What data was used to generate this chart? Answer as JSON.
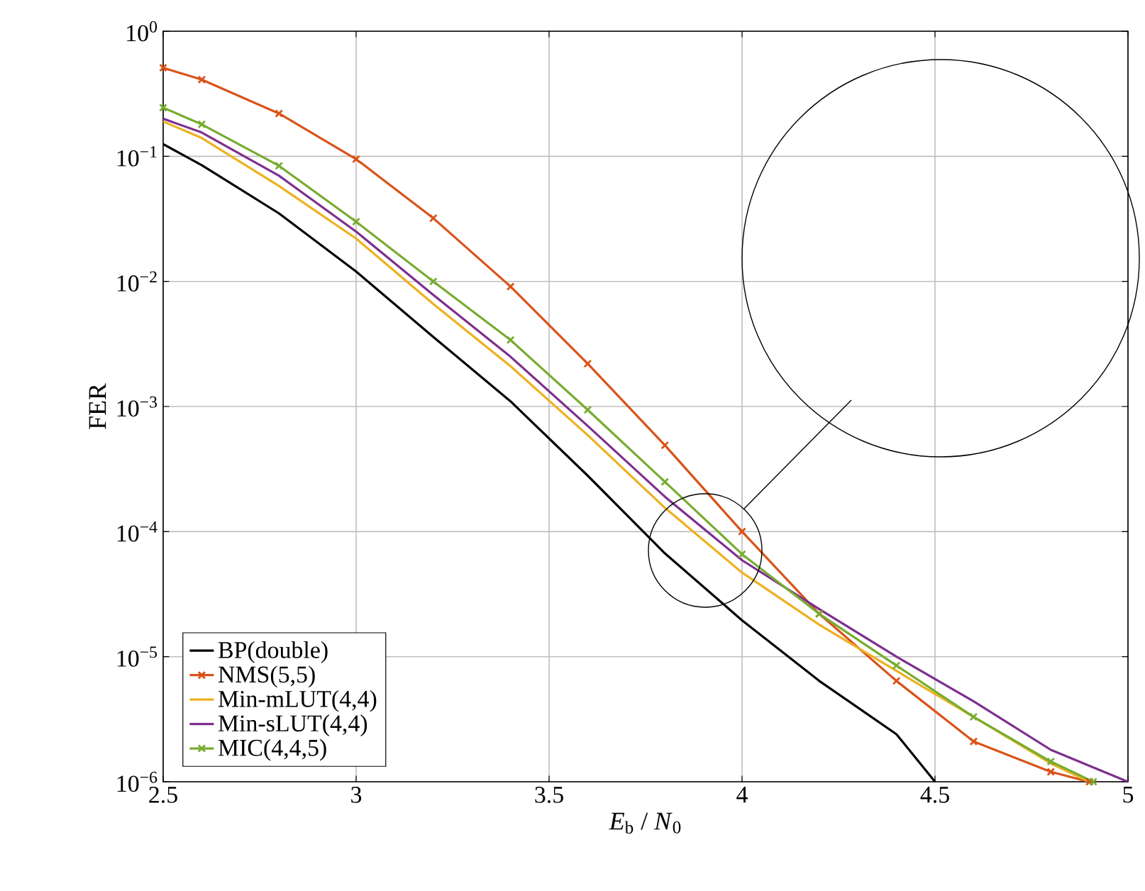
{
  "chart_data": {
    "type": "line",
    "xlabel": "*E*$_{b}$ / *N*$_{0}$",
    "ylabel": "FER",
    "series": [
      {
        "name": "BP(double)",
        "color": "#000000",
        "marker": "none",
        "x": [
          2.5,
          2.6,
          2.8,
          3.0,
          3.2,
          3.4,
          3.6,
          3.8,
          4.0,
          4.2,
          4.4,
          4.5
        ],
        "values": [
          0.125,
          0.085,
          0.035,
          0.012,
          0.0036,
          0.0011,
          0.00028,
          6.7e-05,
          1.95e-05,
          6.4e-06,
          2.4e-06,
          1e-06
        ]
      },
      {
        "name": "NMS(5,5)",
        "color": "#d95319",
        "marker": "cross",
        "x": [
          2.5,
          2.6,
          2.8,
          3.0,
          3.2,
          3.4,
          3.6,
          3.8,
          4.0,
          4.2,
          4.4,
          4.6,
          4.8,
          4.9
        ],
        "values": [
          0.51,
          0.41,
          0.22,
          0.095,
          0.032,
          0.0091,
          0.0022,
          0.00049,
          0.0001,
          2.2e-05,
          6.4e-06,
          2.1e-06,
          1.2e-06,
          1e-06
        ]
      },
      {
        "name": "Min-mLUT(4,4)",
        "color": "#edb120",
        "marker": "none",
        "x": [
          2.5,
          2.6,
          2.8,
          3.0,
          3.2,
          3.4,
          3.6,
          3.8,
          4.0,
          4.2,
          4.4,
          4.6,
          4.8,
          4.9
        ],
        "values": [
          0.19,
          0.14,
          0.058,
          0.022,
          0.0066,
          0.0021,
          0.00059,
          0.000155,
          4.7e-05,
          1.8e-05,
          7.7e-06,
          3.3e-06,
          1.4e-06,
          1e-06
        ]
      },
      {
        "name": "Min-sLUT(4,4)",
        "color": "#7e2f8e",
        "marker": "none",
        "x": [
          2.5,
          2.6,
          2.8,
          3.0,
          3.2,
          3.4,
          3.6,
          3.8,
          4.0,
          4.2,
          4.4,
          4.6,
          4.8,
          5.0
        ],
        "values": [
          0.2,
          0.155,
          0.07,
          0.025,
          0.0078,
          0.0025,
          0.0007,
          0.00019,
          5.9e-05,
          2.4e-05,
          1e-05,
          4.4e-06,
          1.8e-06,
          1e-06
        ]
      },
      {
        "name": "MIC(4,4,5)",
        "color": "#77ac30",
        "marker": "cross",
        "x": [
          2.5,
          2.6,
          2.8,
          3.0,
          3.2,
          3.4,
          3.6,
          3.8,
          4.0,
          4.2,
          4.4,
          4.6,
          4.8,
          4.91
        ],
        "values": [
          0.245,
          0.18,
          0.084,
          0.03,
          0.01,
          0.0034,
          0.00094,
          0.00025,
          6.6e-05,
          2.2e-05,
          8.5e-06,
          3.3e-06,
          1.45e-06,
          1e-06
        ]
      }
    ],
    "xlim": [
      2.5,
      5
    ],
    "xticks": [
      2.5,
      3,
      3.5,
      4,
      4.5,
      5
    ],
    "ylim": [
      1e-06,
      1
    ],
    "log": "y",
    "yticks": [
      {
        "value": 1e-06,
        "label": "10$^{−6}$"
      },
      {
        "value": 1e-05,
        "label": "10$^{−5}$"
      },
      {
        "value": 0.0001,
        "label": "10$^{−4}$"
      },
      {
        "value": 0.001,
        "label": "10$^{−3}$"
      },
      {
        "value": 0.01,
        "label": "10$^{−2}$"
      },
      {
        "value": 0.1,
        "label": "10$^{−1}$"
      },
      {
        "value": 1,
        "label": "10$^{0}$"
      }
    ],
    "grid": true,
    "legend": "bottom left",
    "line_style": "solid"
  }
}
